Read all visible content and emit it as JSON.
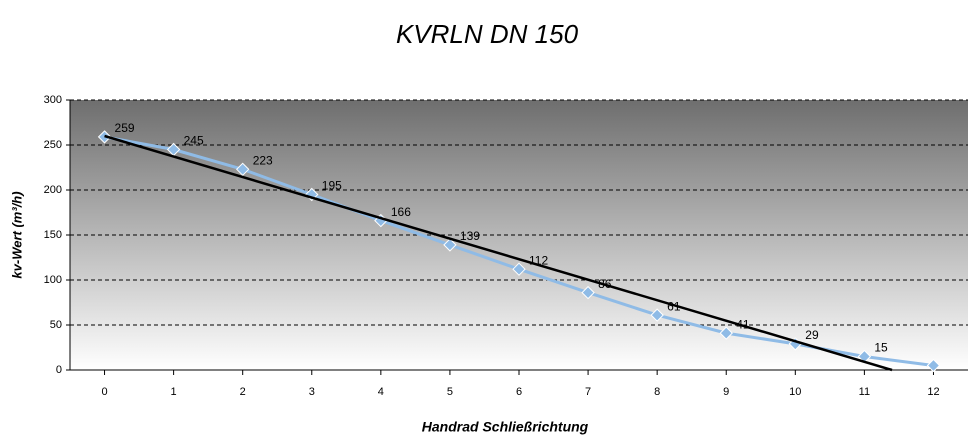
{
  "chart_data": {
    "type": "line",
    "title": "KVRLN DN 150",
    "x_label": "Handrad Schließrichtung",
    "y_label": "kv-Wert (m³/h)",
    "x": [
      0,
      1,
      2,
      3,
      4,
      5,
      6,
      7,
      8,
      9,
      10,
      11,
      12
    ],
    "series": [
      {
        "color": "#8fbbe6",
        "values": [
          259,
          245,
          223,
          195,
          166,
          139,
          112,
          86,
          61,
          41,
          29,
          15,
          5
        ],
        "value_labels": [
          "259",
          "245",
          "223",
          "195",
          "166",
          "139",
          "112",
          "86",
          "61",
          "41",
          "29",
          "15",
          null
        ]
      }
    ],
    "trendline": {
      "x": [
        0,
        11.4
      ],
      "values": [
        260,
        0
      ],
      "color": "#000000"
    },
    "xlim": [
      -0.5,
      12.5
    ],
    "xticks": [
      0,
      1,
      2,
      3,
      4,
      5,
      6,
      7,
      8,
      9,
      10,
      11,
      12
    ],
    "ylim": [
      0,
      300
    ],
    "yticks": [
      0,
      50,
      100,
      150,
      200,
      250,
      300
    ],
    "grid": true
  }
}
